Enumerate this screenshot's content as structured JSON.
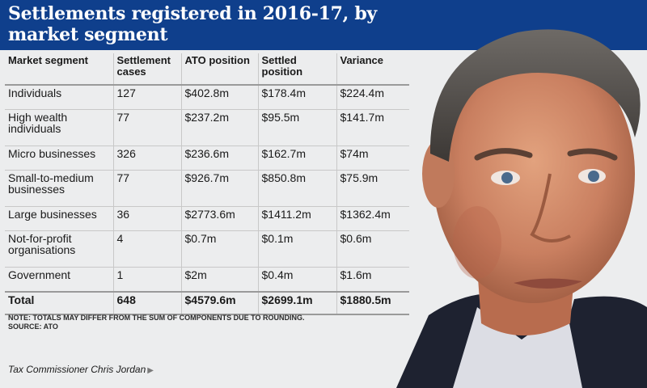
{
  "header": {
    "title": "Settlements registered in 2016-17, by market segment"
  },
  "chart_data": {
    "type": "table",
    "title": "Settlements registered in 2016-17, by market segment",
    "columns": [
      "Market segment",
      "Settlement cases",
      "ATO position",
      "Settled position",
      "Variance"
    ],
    "rows": [
      [
        "Individuals",
        "127",
        "$402.8m",
        "$178.4m",
        "$224.4m"
      ],
      [
        "High wealth individuals",
        "77",
        "$237.2m",
        "$95.5m",
        "$141.7m"
      ],
      [
        "Micro businesses",
        "326",
        "$236.6m",
        "$162.7m",
        "$74m"
      ],
      [
        "Small-to-medium businesses",
        "77",
        "$926.7m",
        "$850.8m",
        "$75.9m"
      ],
      [
        "Large businesses",
        "36",
        "$2773.6m",
        "$1411.2m",
        "$1362.4m"
      ],
      [
        "Not-for-profit organisations",
        "4",
        "$0.7m",
        "$0.1m",
        "$0.6m"
      ],
      [
        "Government",
        "1",
        "$2m",
        "$0.4m",
        "$1.6m"
      ]
    ],
    "total": [
      "Total",
      "648",
      "$4579.6m",
      "$2699.1m",
      "$1880.5m"
    ]
  },
  "footer": {
    "note": "NOTE: TOTALS MAY DIFFER FROM THE SUM OF COMPONENTS DUE TO ROUNDING.",
    "source": "SOURCE: ATO",
    "caption": "Tax Commissioner Chris Jordan",
    "caption_arrow": "▶"
  },
  "colors": {
    "banner": "#0f3f8c",
    "background": "#ecedee"
  }
}
